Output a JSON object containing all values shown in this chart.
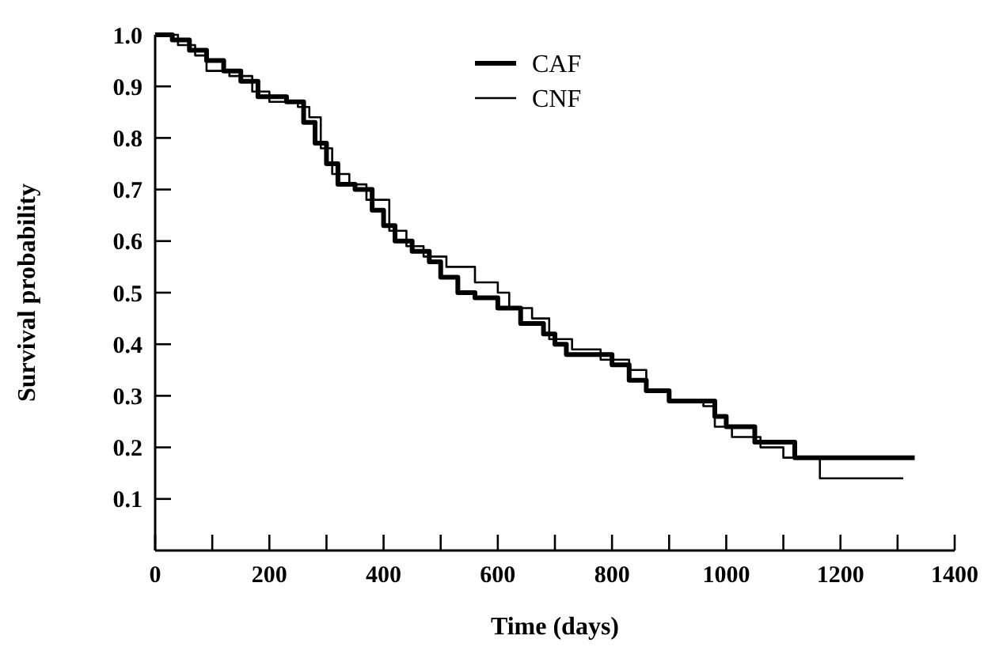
{
  "chart_data": {
    "type": "step",
    "xlabel": "Time (days)",
    "ylabel": "Survival probability",
    "xlim": [
      0,
      1400
    ],
    "ylim": [
      0,
      1.0
    ],
    "xticks": [
      0,
      {
        "value": 100,
        "label": null
      },
      200,
      {
        "value": 300,
        "label": null
      },
      400,
      {
        "value": 500,
        "label": null
      },
      600,
      {
        "value": 700,
        "label": null
      },
      800,
      {
        "value": 900,
        "label": null
      },
      1000,
      {
        "value": 1100,
        "label": null
      },
      1200,
      {
        "value": 1300,
        "label": null
      },
      1400
    ],
    "yticks": [
      0.1,
      0.2,
      0.3,
      0.4,
      0.5,
      0.6,
      0.7,
      0.8,
      0.9,
      {
        "value": 1.0,
        "label": "1.0"
      }
    ],
    "legend": "top",
    "grid": false,
    "series": [
      {
        "name": "CAF",
        "color": "#000000",
        "x": [
          0,
          30,
          60,
          90,
          120,
          150,
          180,
          230,
          260,
          280,
          300,
          320,
          350,
          380,
          400,
          420,
          450,
          480,
          500,
          530,
          560,
          600,
          640,
          680,
          700,
          720,
          800,
          830,
          860,
          900,
          980,
          1000,
          1050,
          1120,
          1330
        ],
        "values": [
          1.0,
          0.99,
          0.97,
          0.95,
          0.93,
          0.91,
          0.88,
          0.87,
          0.83,
          0.79,
          0.75,
          0.71,
          0.7,
          0.66,
          0.63,
          0.6,
          0.58,
          0.56,
          0.53,
          0.5,
          0.49,
          0.47,
          0.44,
          0.42,
          0.4,
          0.38,
          0.36,
          0.33,
          0.31,
          0.29,
          0.26,
          0.24,
          0.21,
          0.18,
          0.18
        ]
      },
      {
        "name": "CNF",
        "color": "#000000",
        "x": [
          0,
          40,
          70,
          90,
          130,
          170,
          200,
          250,
          270,
          290,
          310,
          340,
          370,
          410,
          440,
          470,
          510,
          560,
          600,
          620,
          660,
          690,
          730,
          780,
          830,
          860,
          900,
          960,
          980,
          1010,
          1060,
          1100,
          1164,
          1310
        ],
        "values": [
          1.0,
          0.98,
          0.96,
          0.93,
          0.92,
          0.89,
          0.87,
          0.86,
          0.84,
          0.78,
          0.73,
          0.71,
          0.68,
          0.62,
          0.59,
          0.57,
          0.55,
          0.52,
          0.5,
          0.47,
          0.45,
          0.41,
          0.39,
          0.37,
          0.35,
          0.31,
          0.29,
          0.28,
          0.24,
          0.22,
          0.2,
          0.18,
          0.14,
          0.14
        ]
      }
    ]
  }
}
